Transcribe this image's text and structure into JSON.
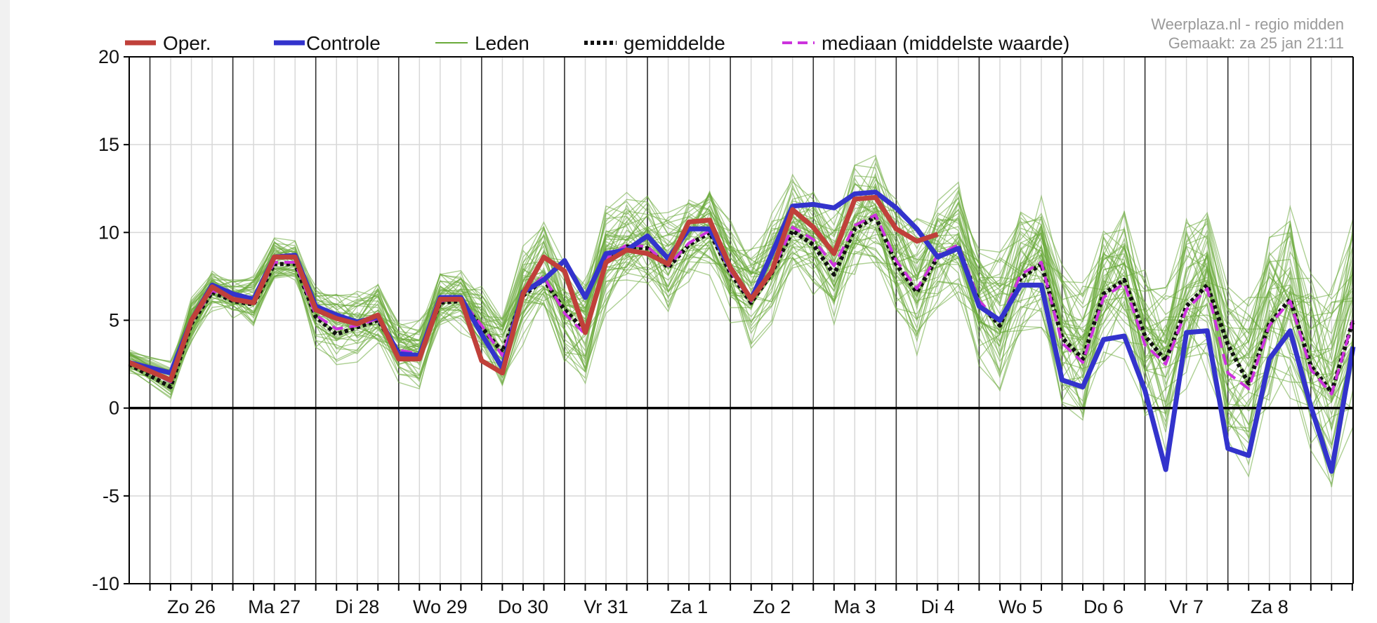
{
  "source": {
    "site": "Weerplaza.nl - regio midden",
    "made": "Gemaakt: za 25 jan 21:11"
  },
  "legend": {
    "oper": "Oper.",
    "controle": "Controle",
    "leden": "Leden",
    "gemiddelde": "gemiddelde",
    "mediaan": "mediaan (middelste waarde)"
  },
  "colors": {
    "oper": "#c0403a",
    "controle": "#3333cc",
    "leden": "#6aaa3a",
    "gemiddelde": "#111111",
    "mediaan": "#cc33dd",
    "zero": "#000000",
    "grid": "#d8d8d8",
    "daylines": "#333333"
  },
  "chart_data": {
    "type": "line",
    "x_unit": "day index (0 = start of chart, integer = day boundary)",
    "xlim": [
      0,
      14.76
    ],
    "ylim": [
      -10,
      20
    ],
    "yticks": [
      -10,
      -5,
      0,
      5,
      10,
      15,
      20
    ],
    "xlabel": "",
    "ylabel": "",
    "day_labels": [
      {
        "label": "Zo 26",
        "x": 0.75
      },
      {
        "label": "Ma 27",
        "x": 1.75
      },
      {
        "label": "Di 28",
        "x": 2.75
      },
      {
        "label": "Wo 29",
        "x": 3.75
      },
      {
        "label": "Do 30",
        "x": 4.75
      },
      {
        "label": "Vr 31",
        "x": 5.75
      },
      {
        "label": "Za 1",
        "x": 6.75
      },
      {
        "label": "Zo 2",
        "x": 7.75
      },
      {
        "label": "Ma 3",
        "x": 8.75
      },
      {
        "label": "Di 4",
        "x": 9.75
      },
      {
        "label": "Wo 5",
        "x": 10.75
      },
      {
        "label": "Do 6",
        "x": 11.75
      },
      {
        "label": "Vr 7",
        "x": 12.75
      },
      {
        "label": "Za 8",
        "x": 13.75
      }
    ],
    "day_boundaries": [
      0.25,
      1.25,
      2.25,
      3.25,
      4.25,
      5.25,
      6.25,
      7.25,
      8.25,
      9.25,
      10.25,
      11.25,
      12.25,
      13.25,
      14.25
    ],
    "series": [
      {
        "name": "Oper.",
        "x": [
          0,
          0.5,
          0.75,
          1.0,
          1.25,
          1.5,
          1.75,
          2.0,
          2.25,
          2.5,
          2.75,
          3.0,
          3.25,
          3.5,
          3.75,
          4.0,
          4.25,
          4.5,
          4.75,
          5.0,
          5.25,
          5.5,
          5.75,
          6.0,
          6.25,
          6.5,
          6.75,
          7.0,
          7.25,
          7.5,
          7.75,
          8.0,
          8.25,
          8.5,
          8.75,
          9.0,
          9.25,
          9.5,
          9.75
        ],
        "y": [
          2.6,
          1.6,
          5.0,
          6.9,
          6.2,
          6.0,
          8.6,
          8.6,
          5.6,
          5.1,
          4.8,
          5.3,
          2.8,
          2.8,
          6.2,
          6.2,
          2.7,
          2.0,
          6.5,
          8.6,
          7.8,
          4.3,
          8.3,
          9.0,
          8.8,
          8.2,
          10.6,
          10.7,
          8.0,
          6.2,
          7.8,
          11.3,
          10.3,
          8.8,
          11.9,
          12.0,
          10.2,
          9.5,
          9.9
        ]
      },
      {
        "name": "Controle",
        "x": [
          0,
          0.5,
          0.75,
          1.0,
          1.25,
          1.5,
          1.75,
          2.0,
          2.25,
          2.5,
          2.75,
          3.0,
          3.25,
          3.5,
          3.75,
          4.0,
          4.25,
          4.5,
          4.75,
          5.0,
          5.25,
          5.5,
          5.75,
          6.0,
          6.25,
          6.5,
          6.75,
          7.0,
          7.25,
          7.5,
          7.75,
          8.0,
          8.25,
          8.5,
          8.75,
          9.0,
          9.25,
          9.5,
          9.75,
          10.0,
          10.25,
          10.5,
          10.75,
          11.0,
          11.25,
          11.5,
          11.75,
          12.0,
          12.25,
          12.5,
          12.75,
          13.0,
          13.25,
          13.5,
          13.75,
          14.0,
          14.25,
          14.5,
          14.76
        ],
        "y": [
          2.6,
          2.0,
          5.0,
          7.0,
          6.5,
          6.2,
          8.6,
          8.7,
          5.8,
          5.3,
          4.9,
          5.2,
          3.1,
          3.0,
          6.3,
          6.3,
          4.2,
          2.3,
          6.6,
          7.3,
          8.4,
          6.3,
          8.8,
          9.0,
          9.8,
          8.5,
          10.2,
          10.2,
          8.0,
          6.2,
          8.8,
          11.5,
          11.6,
          11.4,
          12.2,
          12.3,
          11.4,
          10.2,
          8.6,
          9.1,
          5.8,
          5.0,
          7.0,
          7.0,
          1.6,
          1.2,
          3.9,
          4.1,
          1.0,
          -3.5,
          4.3,
          4.4,
          -2.3,
          -2.7,
          2.8,
          4.4,
          0.1,
          -3.6,
          3.5
        ]
      },
      {
        "name": "gemiddelde",
        "x": [
          0,
          0.5,
          0.75,
          1.0,
          1.25,
          1.5,
          1.75,
          2.0,
          2.25,
          2.5,
          2.75,
          3.0,
          3.25,
          3.5,
          3.75,
          4.0,
          4.25,
          4.5,
          4.75,
          5.0,
          5.25,
          5.5,
          5.75,
          6.0,
          6.25,
          6.5,
          6.75,
          7.0,
          7.25,
          7.5,
          7.75,
          8.0,
          8.25,
          8.5,
          8.75,
          9.0,
          9.25,
          9.5,
          9.75,
          10.0,
          10.25,
          10.5,
          10.75,
          11.0,
          11.25,
          11.5,
          11.75,
          12.0,
          12.25,
          12.5,
          12.75,
          13.0,
          13.25,
          13.5,
          13.75,
          14.0,
          14.25,
          14.5,
          14.76
        ],
        "y": [
          2.5,
          1.2,
          4.8,
          6.6,
          6.1,
          5.9,
          8.2,
          8.2,
          5.2,
          4.2,
          4.6,
          5.0,
          3.2,
          3.0,
          6.0,
          6.1,
          4.6,
          3.2,
          6.4,
          7.3,
          5.6,
          4.4,
          8.3,
          9.2,
          9.1,
          8.0,
          9.3,
          10.0,
          7.7,
          6.0,
          7.7,
          10.1,
          9.3,
          7.6,
          10.2,
          10.9,
          8.2,
          6.6,
          8.6,
          9.2,
          6.0,
          4.7,
          7.4,
          8.2,
          4.0,
          2.8,
          6.5,
          7.3,
          4.1,
          2.7,
          5.8,
          7.0,
          3.6,
          1.4,
          4.8,
          6.2,
          2.4,
          0.9,
          5.0
        ]
      },
      {
        "name": "mediaan (middelste waarde)",
        "x": [
          0,
          0.5,
          0.75,
          1.0,
          1.25,
          1.5,
          1.75,
          2.0,
          2.25,
          2.5,
          2.75,
          3.0,
          3.25,
          3.5,
          3.75,
          4.0,
          4.25,
          4.5,
          4.75,
          5.0,
          5.25,
          5.5,
          5.75,
          6.0,
          6.25,
          6.5,
          6.75,
          7.0,
          7.25,
          7.5,
          7.75,
          8.0,
          8.25,
          8.5,
          8.75,
          9.0,
          9.25,
          9.5,
          9.75,
          10.0,
          10.25,
          10.5,
          10.75,
          11.0,
          11.25,
          11.5,
          11.75,
          12.0,
          12.25,
          12.5,
          12.75,
          13.0,
          13.25,
          13.5,
          13.75,
          14.0,
          14.25,
          14.5,
          14.76
        ],
        "y": [
          2.6,
          1.5,
          4.9,
          6.7,
          6.2,
          6.0,
          8.3,
          8.3,
          5.3,
          4.5,
          4.7,
          5.1,
          3.3,
          3.1,
          6.1,
          6.2,
          4.7,
          3.0,
          6.5,
          7.5,
          5.4,
          4.2,
          8.5,
          9.3,
          9.2,
          8.1,
          9.4,
          10.1,
          7.8,
          6.1,
          7.8,
          10.3,
          9.6,
          8.1,
          10.4,
          11.0,
          8.4,
          6.8,
          8.7,
          9.3,
          6.1,
          4.9,
          7.6,
          8.3,
          3.7,
          2.6,
          6.3,
          7.1,
          3.6,
          2.5,
          5.6,
          6.8,
          2.0,
          1.1,
          4.7,
          6.1,
          2.2,
          0.8,
          5.0
        ]
      }
    ],
    "members": {
      "name": "Leden",
      "count": 50,
      "spread": [
        0.6,
        1.0,
        1.2,
        1.0,
        1.0,
        1.3,
        1.2,
        1.2,
        1.6,
        1.8,
        1.8,
        1.8,
        1.5,
        1.6,
        1.5,
        1.6,
        1.8,
        2.0,
        2.3,
        2.5,
        2.8,
        3.0,
        2.6,
        2.4,
        2.4,
        2.5,
        2.2,
        2.2,
        2.6,
        2.8,
        2.8,
        2.6,
        2.8,
        3.0,
        2.8,
        2.8,
        3.0,
        3.2,
        3.0,
        3.0,
        3.2,
        3.4,
        3.4,
        3.4,
        3.6,
        3.8,
        3.8,
        3.8,
        4.0,
        4.2,
        4.2,
        4.2,
        4.4,
        4.6,
        4.6,
        4.6,
        4.8,
        5.0,
        5.0
      ]
    }
  }
}
